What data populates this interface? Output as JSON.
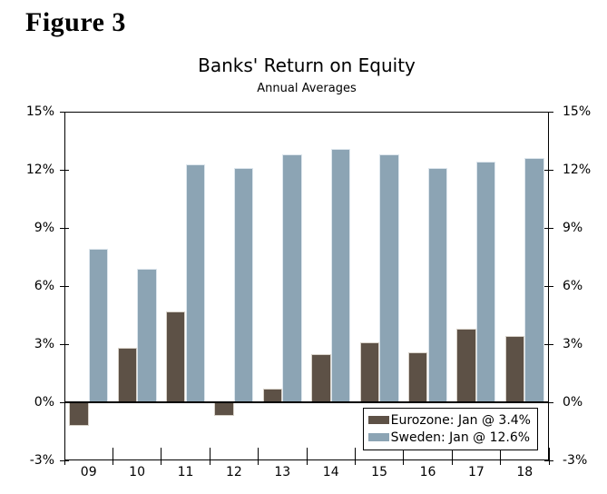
{
  "figure_label": "Figure 3",
  "chart_data": {
    "type": "bar",
    "title": "Banks' Return on Equity",
    "subtitle": "Annual Averages",
    "categories": [
      "09",
      "10",
      "11",
      "12",
      "13",
      "14",
      "15",
      "16",
      "17",
      "18"
    ],
    "series": [
      {
        "name": "Eurozone: Jan @ 3.4%",
        "color": "#5d5146",
        "edge": "#d8d2c9",
        "values": [
          -1.2,
          2.8,
          4.7,
          -0.7,
          0.7,
          2.5,
          3.1,
          2.6,
          3.8,
          3.4
        ]
      },
      {
        "name": "Sweden: Jan @ 12.6%",
        "color": "#8ca4b4",
        "edge": "#dde6ed",
        "values": [
          7.9,
          6.9,
          12.3,
          12.1,
          12.8,
          13.1,
          12.8,
          12.1,
          12.4,
          12.6
        ]
      }
    ],
    "ylim": [
      -3,
      15
    ],
    "ytick_step": 3,
    "ytick_labels": [
      "-3%",
      "0%",
      "3%",
      "6%",
      "9%",
      "12%",
      "15%"
    ],
    "axis_sides": [
      "left",
      "right"
    ],
    "legend_position": "bottom-right",
    "grid": false,
    "text_color": "#000000"
  }
}
